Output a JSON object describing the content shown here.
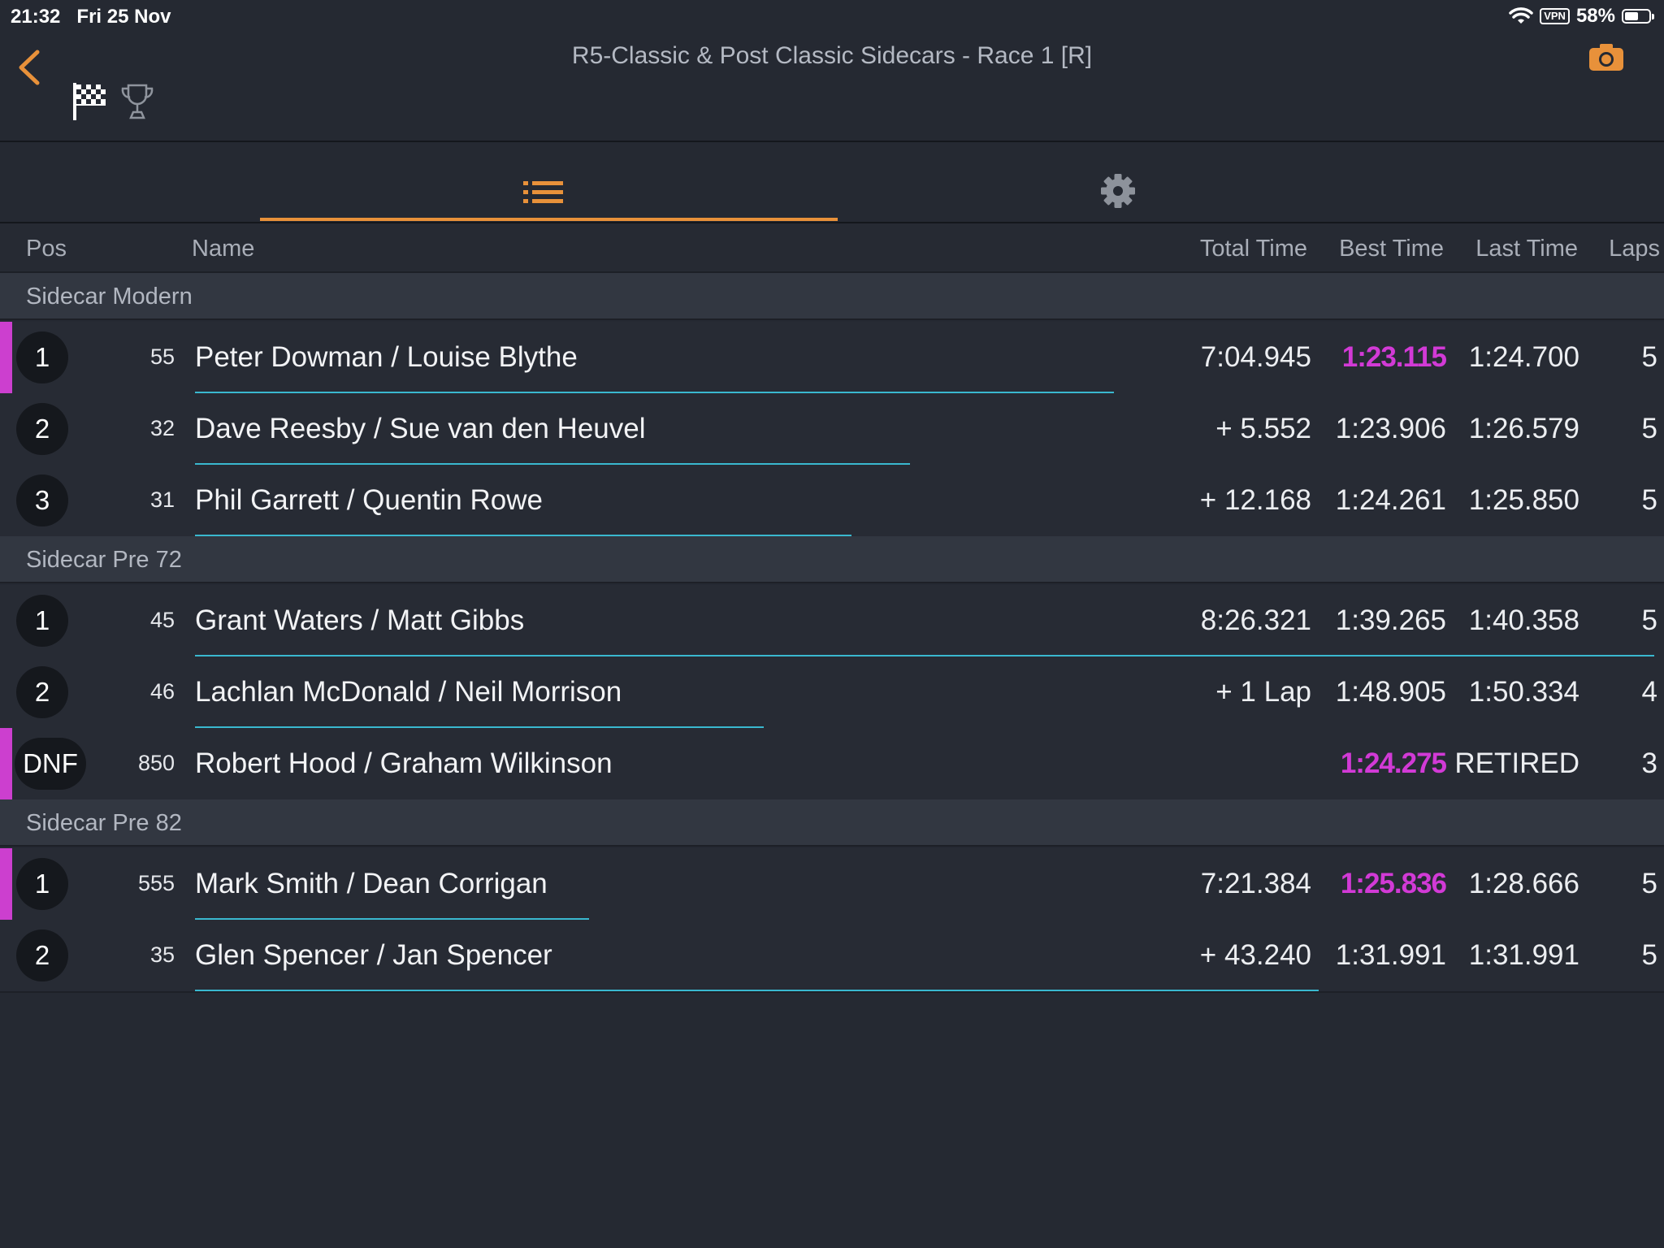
{
  "status_bar": {
    "time": "21:32",
    "date": "Fri 25 Nov",
    "vpn": "VPN",
    "battery": "58%"
  },
  "header": {
    "title": "R5-Classic & Post Classic Sidecars - Race 1 [R]"
  },
  "columns": {
    "pos": "Pos",
    "name": "Name",
    "total": "Total Time",
    "best": "Best Time",
    "last": "Last Time",
    "laps": "Laps"
  },
  "colors": {
    "accent": "#e8913a",
    "fastest": "#d23ad6",
    "progress": "#3ab8cf"
  },
  "groups": [
    {
      "label": "Sidecar Modern"
    },
    {
      "label": "Sidecar Pre 72"
    },
    {
      "label": "Sidecar Pre 82"
    }
  ],
  "rows": [
    {
      "pos": "1",
      "num": "55",
      "name": "Peter Dowman / Louise Blythe",
      "total": "7:04.945",
      "best": "1:23.115",
      "last": "1:24.700",
      "laps": "5",
      "progress": 0.63,
      "fastest": true,
      "mark": true
    },
    {
      "pos": "2",
      "num": "32",
      "name": "Dave Reesby / Sue van den Heuvel",
      "total": "+ 5.552",
      "best": "1:23.906",
      "last": "1:26.579",
      "laps": "5",
      "progress": 0.49
    },
    {
      "pos": "3",
      "num": "31",
      "name": "Phil Garrett / Quentin Rowe",
      "total": "+ 12.168",
      "best": "1:24.261",
      "last": "1:25.850",
      "laps": "5",
      "progress": 0.45
    },
    {
      "pos": "1",
      "num": "45",
      "name": "Grant Waters / Matt Gibbs",
      "total": "8:26.321",
      "best": "1:39.265",
      "last": "1:40.358",
      "laps": "5",
      "progress": 1.0
    },
    {
      "pos": "2",
      "num": "46",
      "name": "Lachlan McDonald / Neil Morrison",
      "total": "+ 1 Lap",
      "best": "1:48.905",
      "last": "1:50.334",
      "laps": "4",
      "progress": 0.39
    },
    {
      "pos": "DNF",
      "num": "850",
      "name": "Robert Hood / Graham Wilkinson",
      "total": "",
      "best": "1:24.275",
      "last": "RETIRED",
      "laps": "3",
      "progress": 0,
      "fastest": true,
      "mark": true
    },
    {
      "pos": "1",
      "num": "555",
      "name": "Mark Smith / Dean Corrigan",
      "total": "7:21.384",
      "best": "1:25.836",
      "last": "1:28.666",
      "laps": "5",
      "progress": 0.27,
      "fastest": true,
      "mark": true
    },
    {
      "pos": "2",
      "num": "35",
      "name": "Glen Spencer / Jan Spencer",
      "total": "+ 43.240",
      "best": "1:31.991",
      "last": "1:31.991",
      "laps": "5",
      "progress": 0.77
    }
  ]
}
